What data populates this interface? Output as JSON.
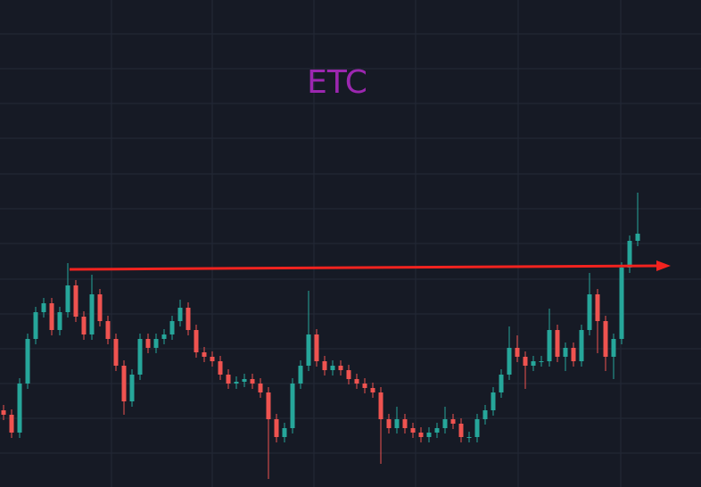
{
  "chart_data": {
    "type": "candlestick",
    "title": "ETC",
    "ylim": [
      0,
      546
    ],
    "up_color": "#26a69a",
    "down_color": "#ef5350",
    "title_color": "#9c27b0",
    "open": [
      86,
      81,
      61,
      116,
      166,
      196,
      206,
      176,
      196,
      226,
      191,
      171,
      216,
      186,
      166,
      136,
      96,
      126,
      166,
      156,
      166,
      171,
      186,
      201,
      176,
      151,
      146,
      141,
      126,
      116,
      118,
      121,
      116,
      106,
      76,
      56,
      66,
      116,
      136,
      171,
      141,
      131,
      136,
      131,
      121,
      116,
      111,
      106,
      76,
      66,
      76,
      66,
      61,
      56,
      61,
      66,
      76,
      71,
      56,
      56,
      76,
      86,
      106,
      126,
      156,
      146,
      136,
      141,
      141,
      176,
      146,
      156,
      141,
      176,
      216,
      186,
      146,
      166,
      246,
      276
    ],
    "high": [
      92,
      87,
      122,
      172,
      202,
      212,
      212,
      202,
      251,
      232,
      197,
      238,
      222,
      192,
      172,
      142,
      132,
      172,
      172,
      172,
      177,
      192,
      210,
      207,
      182,
      157,
      152,
      147,
      132,
      124,
      127,
      127,
      122,
      112,
      82,
      72,
      122,
      142,
      220,
      177,
      147,
      142,
      142,
      137,
      127,
      122,
      117,
      112,
      82,
      90,
      82,
      72,
      67,
      67,
      72,
      90,
      82,
      77,
      62,
      82,
      92,
      112,
      132,
      180,
      170,
      152,
      147,
      147,
      200,
      182,
      162,
      162,
      182,
      240,
      222,
      192,
      172,
      252,
      282,
      330
    ],
    "low": [
      75,
      55,
      55,
      110,
      160,
      190,
      170,
      170,
      190,
      185,
      165,
      165,
      180,
      160,
      130,
      81,
      90,
      120,
      150,
      150,
      160,
      165,
      180,
      170,
      145,
      140,
      135,
      120,
      110,
      110,
      112,
      110,
      100,
      9,
      50,
      50,
      60,
      110,
      130,
      135,
      125,
      125,
      125,
      115,
      110,
      105,
      100,
      26,
      60,
      60,
      60,
      55,
      50,
      50,
      55,
      60,
      65,
      50,
      50,
      50,
      70,
      80,
      100,
      120,
      140,
      110,
      130,
      135,
      135,
      140,
      130,
      135,
      135,
      170,
      150,
      130,
      121,
      160,
      240,
      270
    ],
    "close": [
      81,
      61,
      116,
      166,
      196,
      206,
      176,
      196,
      226,
      191,
      171,
      216,
      186,
      166,
      136,
      96,
      126,
      166,
      156,
      166,
      171,
      186,
      201,
      176,
      151,
      146,
      141,
      126,
      116,
      118,
      121,
      116,
      106,
      76,
      56,
      66,
      116,
      136,
      171,
      141,
      131,
      136,
      131,
      121,
      116,
      111,
      106,
      76,
      66,
      76,
      66,
      61,
      56,
      61,
      66,
      76,
      71,
      56,
      56,
      76,
      86,
      106,
      126,
      156,
      146,
      136,
      141,
      141,
      176,
      146,
      156,
      141,
      176,
      216,
      186,
      146,
      166,
      246,
      276,
      284
    ]
  }
}
